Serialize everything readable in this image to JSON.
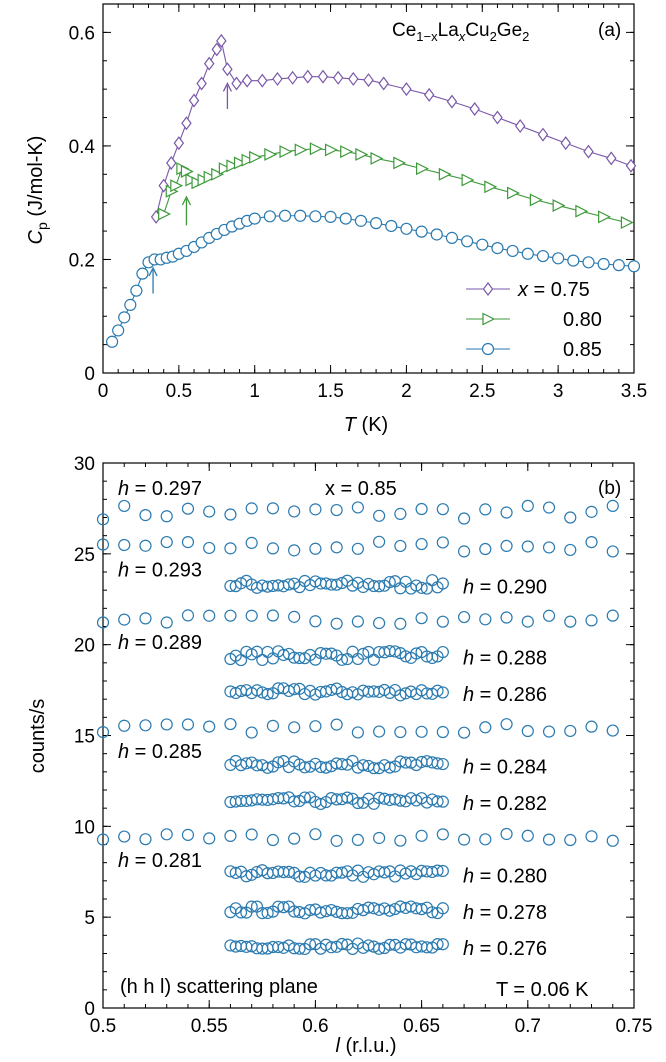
{
  "chart_data": [
    {
      "panel": "(a)",
      "type": "line",
      "title": "",
      "compound": {
        "base": "Ce",
        "sub1": "1−x",
        "mid": "La",
        "sub2": "x",
        "tail1": "Cu",
        "sub3": "2",
        "tail2": "Ge",
        "sub4": "2"
      },
      "xlabel": {
        "var": "T",
        "unit": " (K)"
      },
      "ylabel": {
        "var": "C",
        "sub": "p",
        "unit": " (J/mol-K)"
      },
      "xlim": [
        0,
        3.5
      ],
      "ylim": [
        0,
        0.65
      ],
      "xticks": [
        "0",
        "0.5",
        "1",
        "1.5",
        "2",
        "2.5",
        "3",
        "3.5"
      ],
      "yticks": [
        "0",
        "0.2",
        "0.4",
        "0.6"
      ],
      "legend_placement": "bottom-right",
      "legend_prefix": "x = ",
      "series": [
        {
          "name": "0.75",
          "marker": "diamond",
          "color": "#7a58a8",
          "x": [
            0.35,
            0.4,
            0.45,
            0.5,
            0.55,
            0.6,
            0.65,
            0.7,
            0.75,
            0.78,
            0.82,
            0.88,
            0.95,
            1.05,
            1.15,
            1.25,
            1.35,
            1.45,
            1.55,
            1.65,
            1.75,
            1.85,
            2.0,
            2.15,
            2.3,
            2.45,
            2.6,
            2.75,
            2.9,
            3.05,
            3.2,
            3.35,
            3.48
          ],
          "y": [
            0.275,
            0.33,
            0.37,
            0.405,
            0.44,
            0.48,
            0.51,
            0.545,
            0.57,
            0.585,
            0.535,
            0.51,
            0.515,
            0.515,
            0.518,
            0.52,
            0.522,
            0.522,
            0.52,
            0.518,
            0.516,
            0.51,
            0.5,
            0.49,
            0.478,
            0.465,
            0.45,
            0.435,
            0.42,
            0.405,
            0.39,
            0.378,
            0.365
          ]
        },
        {
          "name": "0.80",
          "marker": "triangle-right",
          "color": "#3d9a3a",
          "x": [
            0.4,
            0.45,
            0.48,
            0.52,
            0.55,
            0.58,
            0.62,
            0.66,
            0.7,
            0.75,
            0.8,
            0.85,
            0.9,
            0.95,
            1.0,
            1.1,
            1.2,
            1.3,
            1.4,
            1.5,
            1.6,
            1.7,
            1.8,
            1.95,
            2.1,
            2.25,
            2.4,
            2.55,
            2.7,
            2.85,
            3.0,
            3.15,
            3.3,
            3.45
          ],
          "y": [
            0.28,
            0.32,
            0.33,
            0.36,
            0.355,
            0.34,
            0.335,
            0.34,
            0.345,
            0.35,
            0.36,
            0.365,
            0.37,
            0.375,
            0.38,
            0.385,
            0.39,
            0.393,
            0.395,
            0.393,
            0.39,
            0.385,
            0.378,
            0.37,
            0.36,
            0.35,
            0.34,
            0.328,
            0.317,
            0.305,
            0.295,
            0.285,
            0.275,
            0.265
          ]
        },
        {
          "name": "0.85",
          "marker": "circle",
          "color": "#2a7ab0",
          "x": [
            0.06,
            0.1,
            0.14,
            0.18,
            0.22,
            0.26,
            0.3,
            0.34,
            0.38,
            0.42,
            0.46,
            0.5,
            0.55,
            0.6,
            0.65,
            0.7,
            0.75,
            0.8,
            0.85,
            0.9,
            0.95,
            1.0,
            1.1,
            1.2,
            1.3,
            1.4,
            1.5,
            1.6,
            1.7,
            1.8,
            1.9,
            2.0,
            2.1,
            2.2,
            2.3,
            2.4,
            2.5,
            2.6,
            2.7,
            2.8,
            2.9,
            3.0,
            3.1,
            3.2,
            3.3,
            3.4,
            3.5
          ],
          "y": [
            0.055,
            0.075,
            0.098,
            0.12,
            0.145,
            0.175,
            0.195,
            0.2,
            0.2,
            0.203,
            0.205,
            0.21,
            0.215,
            0.222,
            0.23,
            0.238,
            0.245,
            0.252,
            0.258,
            0.263,
            0.268,
            0.272,
            0.276,
            0.277,
            0.277,
            0.276,
            0.275,
            0.272,
            0.268,
            0.264,
            0.259,
            0.254,
            0.249,
            0.244,
            0.238,
            0.232,
            0.226,
            0.22,
            0.215,
            0.21,
            0.206,
            0.202,
            0.198,
            0.195,
            0.192,
            0.19,
            0.188
          ]
        }
      ],
      "arrows": [
        {
          "series": "0.75",
          "x": 0.82,
          "y_from": 0.465,
          "y_to": 0.51
        },
        {
          "series": "0.80",
          "x": 0.55,
          "y_from": 0.26,
          "y_to": 0.31
        },
        {
          "series": "0.85",
          "x": 0.33,
          "y_from": 0.14,
          "y_to": 0.185
        }
      ]
    },
    {
      "panel": "(b)",
      "type": "scatter",
      "title": "",
      "xlabel": {
        "var": "l",
        "unit": " (r.l.u.)"
      },
      "ylabel": {
        "text": "counts/s"
      },
      "xlim": [
        0.5,
        0.75
      ],
      "ylim": [
        0,
        30
      ],
      "xticks": [
        "0.5",
        "0.55",
        "0.6",
        "0.65",
        "0.7",
        "0.75"
      ],
      "yticks": [
        "0",
        "5",
        "10",
        "15",
        "20",
        "25",
        "30"
      ],
      "marker": "circle-open",
      "color": "#2a7ab0",
      "annotations": {
        "sample": "x = 0.85",
        "plane": "(h h l) scattering plane",
        "temperature": "T = 0.06 K"
      },
      "series": [
        {
          "name": "h = 0.297",
          "x_range": [
            0.5,
            0.74
          ],
          "step": 0.01,
          "y_level": 27.3,
          "scatter": 0.4
        },
        {
          "name": "h = 0.293",
          "x_range": [
            0.5,
            0.74
          ],
          "step": 0.01,
          "y_level": 25.4,
          "scatter": 0.3
        },
        {
          "name": "h = 0.290",
          "x_range": [
            0.56,
            0.66
          ],
          "step": 0.0025,
          "y_level": 23.3,
          "scatter": 0.25
        },
        {
          "name": "h = 0.289",
          "x_range": [
            0.5,
            0.74
          ],
          "step": 0.01,
          "y_level": 21.4,
          "scatter": 0.25
        },
        {
          "name": "h = 0.288",
          "x_range": [
            0.56,
            0.66
          ],
          "step": 0.0025,
          "y_level": 19.4,
          "scatter": 0.25
        },
        {
          "name": "h = 0.286",
          "x_range": [
            0.56,
            0.66
          ],
          "step": 0.0025,
          "y_level": 17.4,
          "scatter": 0.2
        },
        {
          "name": "h = 0.285",
          "x_range": [
            0.5,
            0.74
          ],
          "step": 0.01,
          "y_level": 15.4,
          "scatter": 0.25
        },
        {
          "name": "h = 0.284",
          "x_range": [
            0.56,
            0.66
          ],
          "step": 0.0025,
          "y_level": 13.4,
          "scatter": 0.2
        },
        {
          "name": "h = 0.282",
          "x_range": [
            0.56,
            0.66
          ],
          "step": 0.0025,
          "y_level": 11.4,
          "scatter": 0.2
        },
        {
          "name": "h = 0.281",
          "x_range": [
            0.5,
            0.74
          ],
          "step": 0.01,
          "y_level": 9.4,
          "scatter": 0.2
        },
        {
          "name": "h = 0.280",
          "x_range": [
            0.56,
            0.66
          ],
          "step": 0.0025,
          "y_level": 7.4,
          "scatter": 0.2
        },
        {
          "name": "h = 0.278",
          "x_range": [
            0.56,
            0.66
          ],
          "step": 0.0025,
          "y_level": 5.4,
          "scatter": 0.2
        },
        {
          "name": "h = 0.276",
          "x_range": [
            0.56,
            0.66
          ],
          "step": 0.0025,
          "y_level": 3.4,
          "scatter": 0.15
        }
      ]
    }
  ]
}
